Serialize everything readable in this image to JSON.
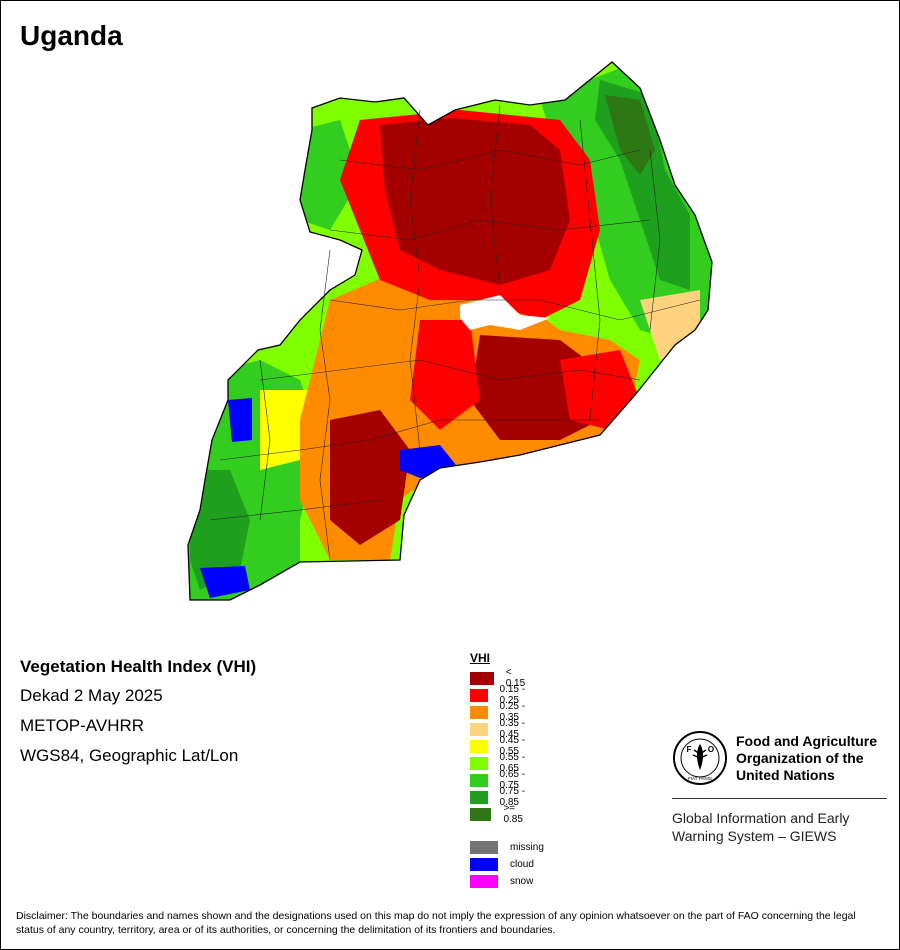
{
  "country": "Uganda",
  "product": {
    "title": "Vegetation Health Index (VHI)",
    "period": "Dekad 2 May 2025",
    "sensor": "METOP-AVHRR",
    "projection": "WGS84, Geographic Lat/Lon"
  },
  "legend": {
    "title": "VHI",
    "classes": [
      {
        "label": "< 0.15",
        "color": "#a50000"
      },
      {
        "label": "0.15 - 0.25",
        "color": "#ff0000"
      },
      {
        "label": "0.25 - 0.35",
        "color": "#ff8c00"
      },
      {
        "label": "0.35 - 0.45",
        "color": "#ffd27f"
      },
      {
        "label": "0.45 - 0.55",
        "color": "#ffff00"
      },
      {
        "label": "0.55 - 0.65",
        "color": "#7fff00"
      },
      {
        "label": "0.65 - 0.75",
        "color": "#32cd1e"
      },
      {
        "label": "0.75 - 0.85",
        "color": "#1ea01e"
      },
      {
        "label": ">= 0.85",
        "color": "#2d7814"
      }
    ],
    "special": [
      {
        "label": "missing",
        "color": "#737373"
      },
      {
        "label": "cloud",
        "color": "#0000ff"
      },
      {
        "label": "snow",
        "color": "#ff00ff"
      }
    ]
  },
  "organization": {
    "name_line1": "Food and Agriculture",
    "name_line2": "Organization of the",
    "name_line3": "United Nations",
    "logo_letters": "F A O",
    "logo_motto": "FIAT PANIS",
    "system_line1": "Global Information and Early",
    "system_line2": "Warning System – GIEWS"
  },
  "disclaimer": "Disclaimer: The boundaries and names shown and the designations used on this map do not imply the expression of any opinion whatsoever on the part of FAO concerning the legal status of any country, territory, area or of its authorities, or concerning the delimitation of its frontiers and boundaries."
}
